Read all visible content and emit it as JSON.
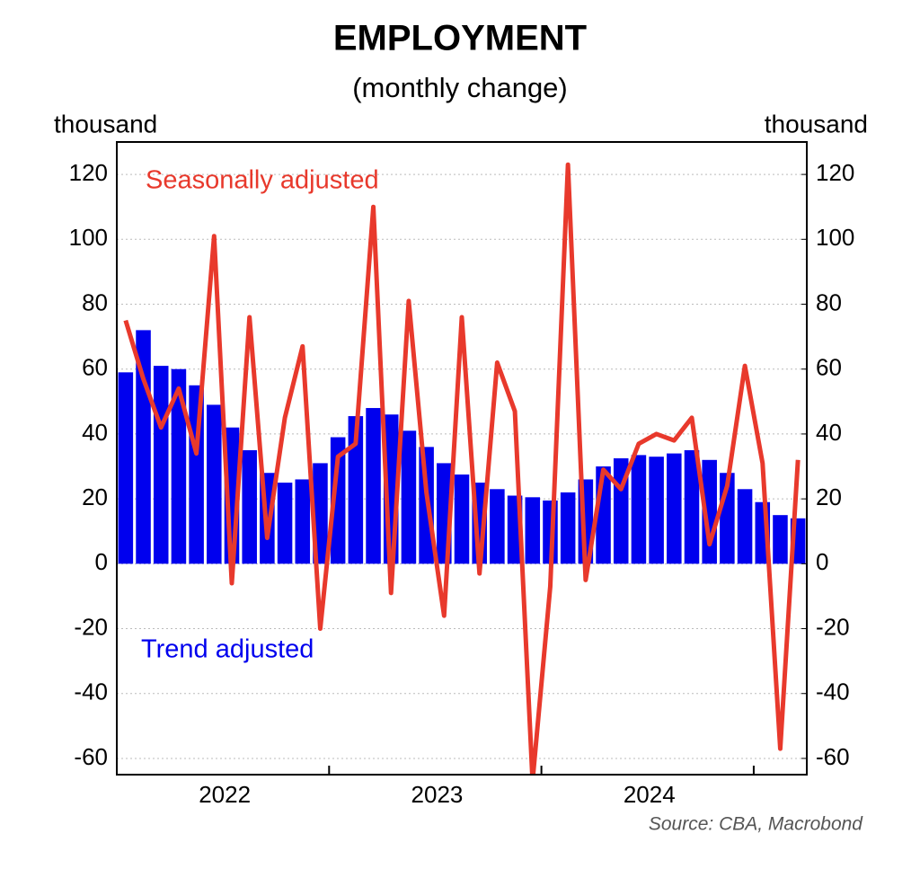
{
  "chart_data": {
    "type": "bar_line",
    "title": "EMPLOYMENT",
    "subtitle": "(monthly change)",
    "y_unit": "thousand",
    "y2_unit": "thousand",
    "source": "Source: CBA, Macrobond",
    "categories": [
      null,
      null,
      null,
      null,
      null,
      null,
      null,
      null,
      null,
      null,
      null,
      null,
      null,
      null,
      null,
      null,
      null,
      null,
      null,
      null,
      null,
      null,
      null,
      null,
      null,
      null,
      null,
      null,
      null,
      null,
      null,
      null,
      null,
      null,
      null,
      null,
      null,
      null,
      null
    ],
    "year_labels": [
      "2022",
      "2023",
      "2024"
    ],
    "series": [
      {
        "name": "Trend adjusted",
        "type": "bar",
        "color": "#0000ee",
        "values": [
          59,
          72,
          61,
          60,
          55,
          49,
          42,
          35,
          28,
          25,
          26,
          31,
          39,
          45.5,
          48,
          46,
          41,
          36,
          31,
          27.5,
          25,
          23,
          21,
          20.5,
          19.5,
          22,
          26,
          30,
          32.5,
          33.5,
          33,
          34,
          35,
          32,
          28,
          23,
          19,
          15,
          14
        ]
      },
      {
        "name": "Seasonally adjusted",
        "type": "line",
        "color": "#e8392c",
        "axis": "y2",
        "values": [
          75,
          57,
          42,
          54,
          34,
          101,
          -6,
          76,
          8,
          45,
          67,
          -20,
          33,
          37,
          110,
          -9,
          81,
          22,
          -16,
          76,
          -3,
          62,
          47,
          -67,
          -7,
          123,
          -5,
          29,
          23,
          37,
          40,
          38,
          45,
          6,
          24,
          61,
          31,
          -57,
          32
        ]
      }
    ],
    "ylim": [
      -65,
      130
    ],
    "yticks": [
      -60,
      -40,
      -20,
      0,
      20,
      40,
      60,
      80,
      100,
      120
    ],
    "y2lim": [
      -65,
      130
    ],
    "y2ticks": [
      -60,
      -40,
      -20,
      0,
      20,
      40,
      60,
      80,
      100,
      120
    ],
    "grid": true
  }
}
